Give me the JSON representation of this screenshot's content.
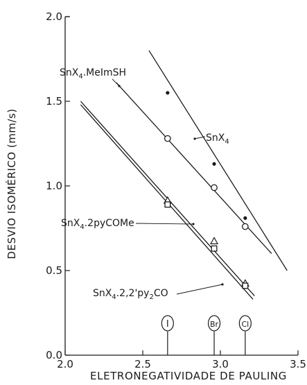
{
  "chart_data": {
    "type": "scatter",
    "title": "",
    "xlabel": "ELETRONEGATIVIDADE DE PAULING",
    "ylabel": "DESVIO ISOMÉRICO (mm/s)",
    "xlim": [
      2.0,
      3.5
    ],
    "ylim": [
      0.0,
      2.0
    ],
    "xticks": [
      "2.0",
      "2.5",
      "3.0",
      "3.5"
    ],
    "yticks": [
      "0.0",
      "0.5",
      "1.0",
      "1.5",
      "2.0"
    ],
    "grid": false,
    "halogens": [
      {
        "label": "I",
        "x": 2.66
      },
      {
        "label": "Br",
        "x": 2.96
      },
      {
        "label": "Cl",
        "x": 3.16
      }
    ],
    "series": [
      {
        "name": "SnX4",
        "label_main": "SnX",
        "label_sub": "4",
        "marker": "dot",
        "x": [
          2.66,
          2.96,
          3.16
        ],
        "y": [
          1.55,
          1.13,
          0.81
        ],
        "fit": [
          [
            2.54,
            1.8
          ],
          [
            3.43,
            0.5
          ]
        ]
      },
      {
        "name": "SnX4.MeImSH",
        "label_main": "SnX",
        "label_sub": "4",
        "label_tail": ".MeImSH",
        "marker": "circle",
        "x": [
          2.66,
          2.96,
          3.16
        ],
        "y": [
          1.28,
          0.99,
          0.76
        ],
        "fit": [
          [
            2.33,
            1.61
          ],
          [
            3.33,
            0.6
          ]
        ]
      },
      {
        "name": "SnX4.2pyCOMe",
        "label_main": "SnX",
        "label_sub": "4",
        "label_tail": ".2pyCOMe",
        "marker": "triangle",
        "x": [
          2.66,
          2.96,
          3.16
        ],
        "y": [
          0.91,
          0.67,
          0.42
        ],
        "fit": [
          [
            2.1,
            1.5
          ],
          [
            3.22,
            0.35
          ]
        ]
      },
      {
        "name": "SnX4.2,2'py2CO",
        "label_main": "SnX",
        "label_sub": "4",
        "label_tail": ".2,2'py",
        "label_sub2": "2",
        "label_tail2": "CO",
        "marker": "square",
        "x": [
          2.66,
          2.96,
          3.16
        ],
        "y": [
          0.89,
          0.63,
          0.41
        ],
        "fit": [
          [
            2.1,
            1.48
          ],
          [
            3.21,
            0.33
          ]
        ]
      }
    ]
  }
}
